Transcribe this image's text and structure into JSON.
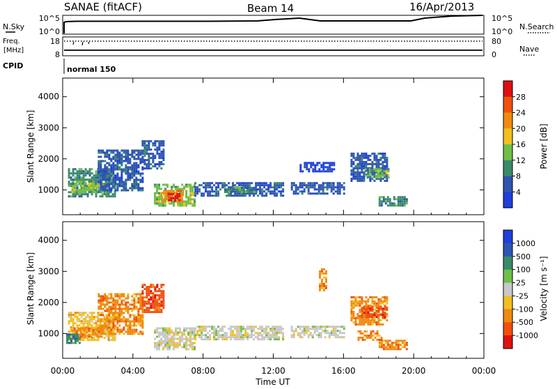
{
  "header": {
    "station": "SANAE (fitACF)",
    "beam": "Beam 14",
    "date": "16/Apr/2013"
  },
  "noise_panel": {
    "left_label": "N.Sky",
    "right_label": "N.Search",
    "left_ticks": [
      "10^5",
      "10^0"
    ],
    "right_ticks": [
      "10^5",
      "10^0"
    ]
  },
  "freq_panel": {
    "left_label_top": "Freq.",
    "left_label_bottom": "[MHz]",
    "left_ticks": [
      "18",
      "8"
    ],
    "right_ticks": [
      "80",
      "0"
    ],
    "right_label": "Nave",
    "cpid_label": "CPID",
    "cpid_value": "normal 150"
  },
  "colors": {
    "power": [
      "#1e3fdc",
      "#2f55b0",
      "#3a8a6a",
      "#6fbf4a",
      "#f0c020",
      "#f08a10",
      "#f05010",
      "#e01010"
    ],
    "velocity": [
      "#e01010",
      "#f05010",
      "#f08a10",
      "#f0c020",
      "#c8c8c8",
      "#6fbf4a",
      "#3a8a6a",
      "#2f55b0",
      "#1e3fdc"
    ]
  },
  "chart_data": [
    {
      "type": "heatmap",
      "title": "Power",
      "ylabel": "Slant Range [km]",
      "yticks": [
        "1000",
        "2000",
        "3000",
        "4000"
      ],
      "ylim": [
        200,
        4600
      ],
      "xlim": [
        0,
        24
      ],
      "colorbar_label": "Power [dB]",
      "colorbar_ticks": [
        "4",
        "8",
        "12",
        "16",
        "20",
        "24",
        "28"
      ],
      "regions": [
        {
          "t0": 0.3,
          "t1": 3.0,
          "r0": 800,
          "r1": 1700,
          "level": 2
        },
        {
          "t0": 0.5,
          "t1": 2.5,
          "r0": 900,
          "r1": 1300,
          "level": 3
        },
        {
          "t0": 2.0,
          "t1": 4.6,
          "r0": 1000,
          "r1": 2300,
          "level": 1
        },
        {
          "t0": 4.5,
          "t1": 5.8,
          "r0": 1700,
          "r1": 2600,
          "level": 1
        },
        {
          "t0": 5.2,
          "t1": 7.5,
          "r0": 500,
          "r1": 1200,
          "level": 3
        },
        {
          "t0": 5.6,
          "t1": 6.8,
          "r0": 600,
          "r1": 1000,
          "level": 5
        },
        {
          "t0": 6.0,
          "t1": 6.6,
          "r0": 650,
          "r1": 900,
          "level": 7
        },
        {
          "t0": 7.5,
          "t1": 12.5,
          "r0": 800,
          "r1": 1250,
          "level": 1
        },
        {
          "t0": 9.2,
          "t1": 11.0,
          "r0": 900,
          "r1": 1100,
          "level": 2
        },
        {
          "t0": 13.5,
          "t1": 15.5,
          "r0": 1600,
          "r1": 1900,
          "level": 0
        },
        {
          "t0": 13.0,
          "t1": 16.0,
          "r0": 900,
          "r1": 1250,
          "level": 1
        },
        {
          "t0": 16.4,
          "t1": 18.5,
          "r0": 1300,
          "r1": 2200,
          "level": 1
        },
        {
          "t0": 17.2,
          "t1": 18.6,
          "r0": 1400,
          "r1": 1700,
          "level": 3
        },
        {
          "t0": 18.0,
          "t1": 19.6,
          "r0": 500,
          "r1": 800,
          "level": 2
        }
      ]
    },
    {
      "type": "heatmap",
      "title": "Velocity",
      "ylabel": "Slant Range [km]",
      "xlabel": "Time UT",
      "xticks": [
        "00:00",
        "04:00",
        "08:00",
        "12:00",
        "16:00",
        "20:00",
        "00:00"
      ],
      "yticks": [
        "1000",
        "2000",
        "3000",
        "4000"
      ],
      "ylim": [
        200,
        4600
      ],
      "xlim": [
        0,
        24
      ],
      "colorbar_label": "Velocity [m s⁻¹]",
      "colorbar_ticks": [
        "1000",
        "500",
        "100",
        "25",
        "-25",
        "-100",
        "-500",
        "-1000"
      ],
      "regions": [
        {
          "t0": 0.3,
          "t1": 3.0,
          "r0": 800,
          "r1": 1700,
          "level": 3
        },
        {
          "t0": 0.5,
          "t1": 2.2,
          "r0": 900,
          "r1": 1200,
          "level": 2
        },
        {
          "t0": 0.2,
          "t1": 1.0,
          "r0": 700,
          "r1": 1000,
          "level": 6
        },
        {
          "t0": 2.0,
          "t1": 4.6,
          "r0": 1000,
          "r1": 2300,
          "level": 2
        },
        {
          "t0": 4.5,
          "t1": 5.8,
          "r0": 1700,
          "r1": 2600,
          "level": 1
        },
        {
          "t0": 5.2,
          "t1": 7.5,
          "r0": 500,
          "r1": 1200,
          "level": 4
        },
        {
          "t0": 7.5,
          "t1": 12.5,
          "r0": 800,
          "r1": 1250,
          "level": 4
        },
        {
          "t0": 13.0,
          "t1": 16.0,
          "r0": 900,
          "r1": 1250,
          "level": 4
        },
        {
          "t0": 14.6,
          "t1": 15.0,
          "r0": 2400,
          "r1": 3100,
          "level": 2
        },
        {
          "t0": 16.4,
          "t1": 18.5,
          "r0": 1300,
          "r1": 2200,
          "level": 2
        },
        {
          "t0": 17.0,
          "t1": 18.4,
          "r0": 1500,
          "r1": 1900,
          "level": 1
        },
        {
          "t0": 18.0,
          "t1": 19.6,
          "r0": 500,
          "r1": 800,
          "level": 2
        },
        {
          "t0": 16.8,
          "t1": 18.2,
          "r0": 800,
          "r1": 1100,
          "level": 2
        }
      ]
    }
  ]
}
